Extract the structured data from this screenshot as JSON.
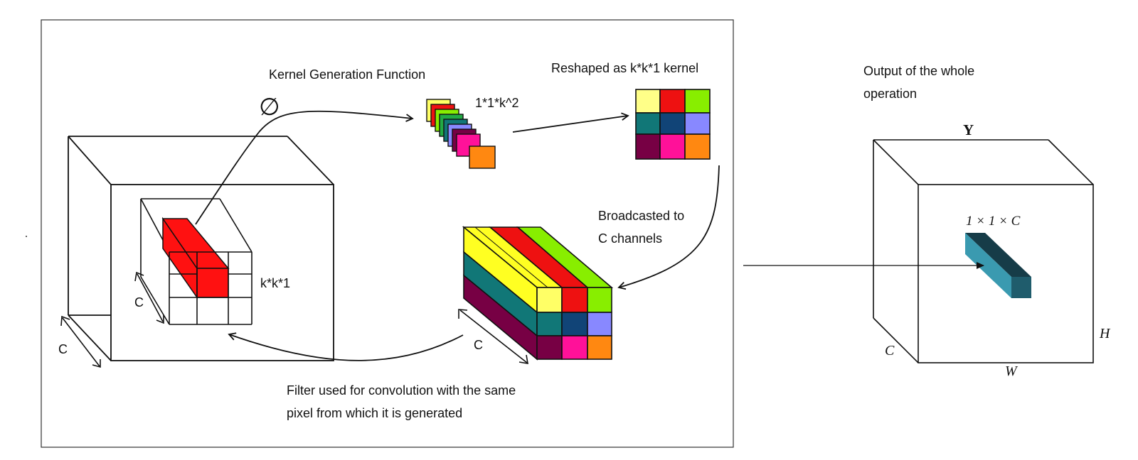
{
  "labels": {
    "kernel_generation": "Kernel Generation Function",
    "phi": "∅",
    "vector_size": "1*1*k^2",
    "reshaped": "Reshaped as k*k*1 kernel",
    "output_title_line1": "Output of the whole",
    "output_title_line2": "operation",
    "broadcast_line1": "Broadcasted to",
    "broadcast_line2": "C channels",
    "kk1": "k*k*1",
    "c_inner": "C",
    "c_outer": "C",
    "c_broadcast": "C",
    "filter_line1": "Filter used for convolution with the same",
    "filter_line2": "pixel from which it is generated",
    "out_y": "Y",
    "out_h": "H",
    "out_w": "W",
    "out_c": "C",
    "out_patch": "1 × 1 × C"
  },
  "kernel_colors": [
    "#ffff66",
    "#ee1111",
    "#88ee00",
    "#117777",
    "#114477",
    "#8888ff",
    "#770044",
    "#ff1199",
    "#ff8811"
  ],
  "colors": {
    "extracted_pixel": "#ff1111",
    "output_patch_front": "#3a9ab0",
    "output_patch_top": "#163c48",
    "output_patch_side": "#1f5c6c"
  }
}
